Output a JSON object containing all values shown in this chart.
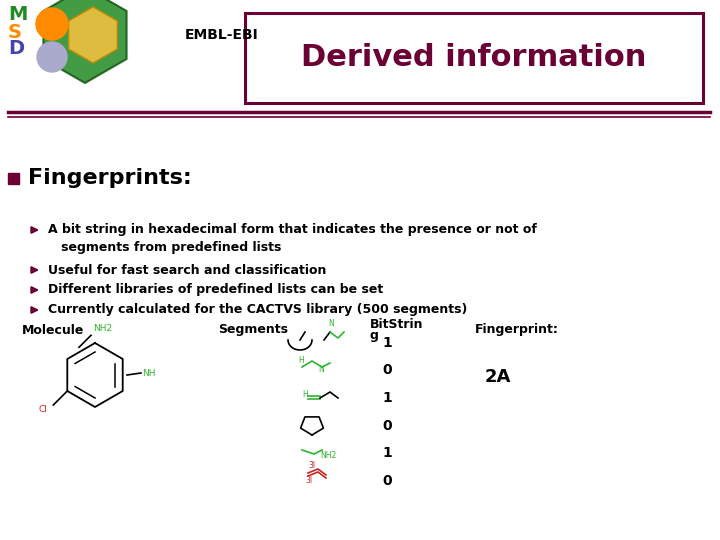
{
  "title": "Derived information",
  "title_color": "#6B0035",
  "title_box_color": "#6B0035",
  "header_text": "EMBL-EBI",
  "bg_color": "#ffffff",
  "section_title": "Fingerprints:",
  "section_bullet_color": "#6B0035",
  "bullet_arrow_color": "#6B0035",
  "bullet_text_color": "#000000",
  "bullets": [
    "A bit string in hexadecimal form that indicates the presence or not of",
    "    segments from predefined lists",
    "Useful for fast search and classification",
    "Different libraries of predefined lists can be set",
    "Currently calculated for the CACTVS library (500 segments)"
  ],
  "table_mol_header": "Molecule",
  "table_seg_header": "Segments",
  "table_bit_header1": "BitStrin",
  "table_bit_header2": "g",
  "table_fp_header": "Fingerprint:",
  "bit_values": [
    "1",
    "0",
    "1",
    "0",
    "1",
    "0"
  ],
  "fingerprint_value": "2A",
  "separator_color": "#6B0035",
  "green_color": "#2DB52D",
  "red_color": "#CC2222"
}
